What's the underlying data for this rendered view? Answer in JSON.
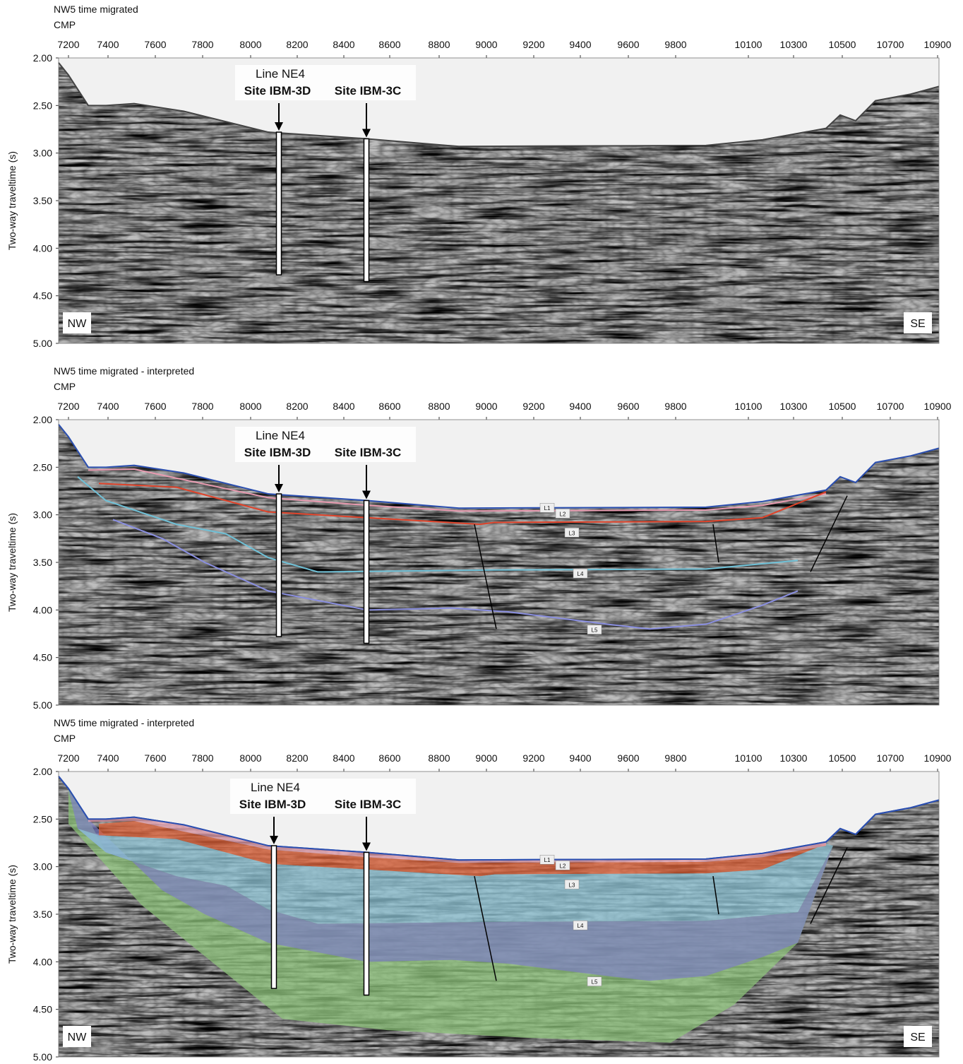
{
  "panels": [
    {
      "title": "NW5 time migrated",
      "x_axis_label": "CMP",
      "x_ticks": [
        7200,
        7400,
        7600,
        7800,
        8000,
        8200,
        8400,
        8600,
        8800,
        9000,
        9200,
        9400,
        9600,
        9800,
        10100,
        10300,
        10500,
        10700,
        10900
      ],
      "y_axis_label": "Two-way traveltime (s)",
      "y_ticks": [
        "2.00",
        "2.50",
        "3.00",
        "3.50",
        "4.00",
        "4.50",
        "5.00"
      ],
      "line_label": "Line NE4",
      "sites": [
        "Site IBM-3D",
        "Site IBM-3C"
      ],
      "directions": [
        "NW",
        "SE"
      ]
    },
    {
      "title": "NW5 time migrated - interpreted",
      "x_axis_label": "CMP",
      "x_ticks": [
        7200,
        7400,
        7600,
        7800,
        8000,
        8200,
        8400,
        8600,
        8800,
        9000,
        9200,
        9400,
        9600,
        9800,
        10100,
        10300,
        10500,
        10700,
        10900
      ],
      "y_axis_label": "Two-way traveltime (s)",
      "y_ticks": [
        "2.00",
        "2.50",
        "3.00",
        "3.50",
        "4.00",
        "4.50",
        "5.00"
      ],
      "line_label": "Line NE4",
      "sites": [
        "Site IBM-3D",
        "Site IBM-3C"
      ],
      "layer_labels": [
        "L1",
        "L2",
        "L3",
        "L4",
        "L5"
      ]
    },
    {
      "title": "NW5 time migrated - interpreted",
      "x_axis_label": "CMP",
      "x_ticks": [
        7200,
        7400,
        7600,
        7800,
        8000,
        8200,
        8400,
        8600,
        8800,
        9000,
        9200,
        9400,
        9600,
        9800,
        10100,
        10300,
        10500,
        10700,
        10900
      ],
      "y_axis_label": "Two-way traveltime (s)",
      "y_ticks": [
        "2.00",
        "2.50",
        "3.00",
        "3.50",
        "4.00",
        "4.50",
        "5.00"
      ],
      "line_label": "Line NE4",
      "sites": [
        "Site IBM-3D",
        "Site IBM-3C"
      ],
      "layer_labels": [
        "L1",
        "L2",
        "L3",
        "L4",
        "L5"
      ],
      "directions": [
        "NW",
        "SE"
      ]
    }
  ]
}
